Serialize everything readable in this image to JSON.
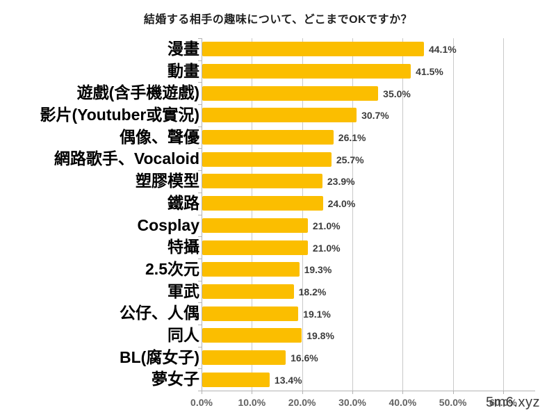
{
  "chart_data": {
    "type": "bar",
    "orientation": "horizontal",
    "title": "結婚する相手の趣味について、どこまでOKですか？",
    "categories": [
      "漫畫",
      "動畫",
      "遊戲(含手機遊戲)",
      "影片(Youtuber或實況)",
      "偶像、聲優",
      "網路歌手、Vocaloid",
      "塑膠模型",
      "鐵路",
      "Cosplay",
      "特攝",
      "2.5次元",
      "軍武",
      "公仔、人偶",
      "同人",
      "BL(腐女子)",
      "夢女子"
    ],
    "values": [
      44.1,
      41.5,
      35.0,
      30.7,
      26.1,
      25.7,
      23.9,
      24.0,
      21.0,
      21.0,
      19.3,
      18.2,
      19.1,
      19.8,
      16.6,
      13.4
    ],
    "value_labels": [
      "44.1%",
      "41.5%",
      "35.0%",
      "30.7%",
      "26.1%",
      "25.7%",
      "23.9%",
      "24.0%",
      "21.0%",
      "21.0%",
      "19.3%",
      "18.2%",
      "19.1%",
      "19.8%",
      "16.6%",
      "13.4%"
    ],
    "xlabel": "",
    "ylabel": "",
    "xlim": [
      0,
      60
    ],
    "xtick_labels": [
      "0.0%",
      "10.0%",
      "20.0%",
      "30.0%",
      "40.0%",
      "50.0%",
      "60.0%"
    ],
    "grid": true,
    "legend": "none",
    "bar_color": "#FBBE00"
  },
  "watermark": {
    "text": "5m6.xyz"
  },
  "colors": {
    "background": "#ffffff",
    "bar": "#FBBE00",
    "gridline": "#c9c9c9",
    "axis": "#b3b3b3",
    "value_text": "#3c3c3c",
    "xtick_text": "#636363",
    "title_text": "#1f1f1f"
  }
}
